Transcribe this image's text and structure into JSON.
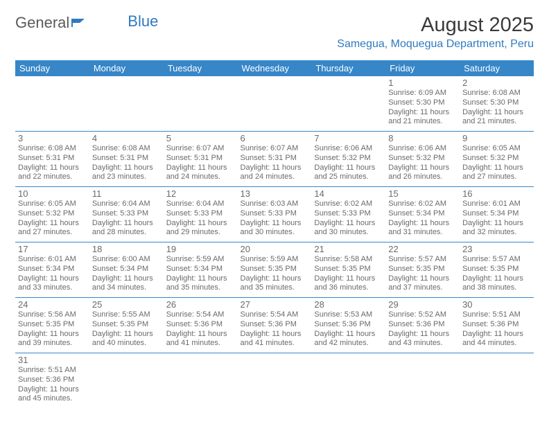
{
  "logo": {
    "word1": "General",
    "word2": "Blue"
  },
  "title": "August 2025",
  "location": "Samegua, Moquegua Department, Peru",
  "colors": {
    "header_bg": "#3686c8",
    "header_text": "#ffffff",
    "row_border": "#3686c8",
    "accent_text": "#2f7abf",
    "body_text": "#6a6a6a"
  },
  "weekday_labels": [
    "Sunday",
    "Monday",
    "Tuesday",
    "Wednesday",
    "Thursday",
    "Friday",
    "Saturday"
  ],
  "weeks": [
    [
      null,
      null,
      null,
      null,
      null,
      {
        "d": "1",
        "sunrise": "Sunrise: 6:09 AM",
        "sunset": "Sunset: 5:30 PM",
        "daylight": "Daylight: 11 hours and 21 minutes."
      },
      {
        "d": "2",
        "sunrise": "Sunrise: 6:08 AM",
        "sunset": "Sunset: 5:30 PM",
        "daylight": "Daylight: 11 hours and 21 minutes."
      }
    ],
    [
      {
        "d": "3",
        "sunrise": "Sunrise: 6:08 AM",
        "sunset": "Sunset: 5:31 PM",
        "daylight": "Daylight: 11 hours and 22 minutes."
      },
      {
        "d": "4",
        "sunrise": "Sunrise: 6:08 AM",
        "sunset": "Sunset: 5:31 PM",
        "daylight": "Daylight: 11 hours and 23 minutes."
      },
      {
        "d": "5",
        "sunrise": "Sunrise: 6:07 AM",
        "sunset": "Sunset: 5:31 PM",
        "daylight": "Daylight: 11 hours and 24 minutes."
      },
      {
        "d": "6",
        "sunrise": "Sunrise: 6:07 AM",
        "sunset": "Sunset: 5:31 PM",
        "daylight": "Daylight: 11 hours and 24 minutes."
      },
      {
        "d": "7",
        "sunrise": "Sunrise: 6:06 AM",
        "sunset": "Sunset: 5:32 PM",
        "daylight": "Daylight: 11 hours and 25 minutes."
      },
      {
        "d": "8",
        "sunrise": "Sunrise: 6:06 AM",
        "sunset": "Sunset: 5:32 PM",
        "daylight": "Daylight: 11 hours and 26 minutes."
      },
      {
        "d": "9",
        "sunrise": "Sunrise: 6:05 AM",
        "sunset": "Sunset: 5:32 PM",
        "daylight": "Daylight: 11 hours and 27 minutes."
      }
    ],
    [
      {
        "d": "10",
        "sunrise": "Sunrise: 6:05 AM",
        "sunset": "Sunset: 5:32 PM",
        "daylight": "Daylight: 11 hours and 27 minutes."
      },
      {
        "d": "11",
        "sunrise": "Sunrise: 6:04 AM",
        "sunset": "Sunset: 5:33 PM",
        "daylight": "Daylight: 11 hours and 28 minutes."
      },
      {
        "d": "12",
        "sunrise": "Sunrise: 6:04 AM",
        "sunset": "Sunset: 5:33 PM",
        "daylight": "Daylight: 11 hours and 29 minutes."
      },
      {
        "d": "13",
        "sunrise": "Sunrise: 6:03 AM",
        "sunset": "Sunset: 5:33 PM",
        "daylight": "Daylight: 11 hours and 30 minutes."
      },
      {
        "d": "14",
        "sunrise": "Sunrise: 6:02 AM",
        "sunset": "Sunset: 5:33 PM",
        "daylight": "Daylight: 11 hours and 30 minutes."
      },
      {
        "d": "15",
        "sunrise": "Sunrise: 6:02 AM",
        "sunset": "Sunset: 5:34 PM",
        "daylight": "Daylight: 11 hours and 31 minutes."
      },
      {
        "d": "16",
        "sunrise": "Sunrise: 6:01 AM",
        "sunset": "Sunset: 5:34 PM",
        "daylight": "Daylight: 11 hours and 32 minutes."
      }
    ],
    [
      {
        "d": "17",
        "sunrise": "Sunrise: 6:01 AM",
        "sunset": "Sunset: 5:34 PM",
        "daylight": "Daylight: 11 hours and 33 minutes."
      },
      {
        "d": "18",
        "sunrise": "Sunrise: 6:00 AM",
        "sunset": "Sunset: 5:34 PM",
        "daylight": "Daylight: 11 hours and 34 minutes."
      },
      {
        "d": "19",
        "sunrise": "Sunrise: 5:59 AM",
        "sunset": "Sunset: 5:34 PM",
        "daylight": "Daylight: 11 hours and 35 minutes."
      },
      {
        "d": "20",
        "sunrise": "Sunrise: 5:59 AM",
        "sunset": "Sunset: 5:35 PM",
        "daylight": "Daylight: 11 hours and 35 minutes."
      },
      {
        "d": "21",
        "sunrise": "Sunrise: 5:58 AM",
        "sunset": "Sunset: 5:35 PM",
        "daylight": "Daylight: 11 hours and 36 minutes."
      },
      {
        "d": "22",
        "sunrise": "Sunrise: 5:57 AM",
        "sunset": "Sunset: 5:35 PM",
        "daylight": "Daylight: 11 hours and 37 minutes."
      },
      {
        "d": "23",
        "sunrise": "Sunrise: 5:57 AM",
        "sunset": "Sunset: 5:35 PM",
        "daylight": "Daylight: 11 hours and 38 minutes."
      }
    ],
    [
      {
        "d": "24",
        "sunrise": "Sunrise: 5:56 AM",
        "sunset": "Sunset: 5:35 PM",
        "daylight": "Daylight: 11 hours and 39 minutes."
      },
      {
        "d": "25",
        "sunrise": "Sunrise: 5:55 AM",
        "sunset": "Sunset: 5:35 PM",
        "daylight": "Daylight: 11 hours and 40 minutes."
      },
      {
        "d": "26",
        "sunrise": "Sunrise: 5:54 AM",
        "sunset": "Sunset: 5:36 PM",
        "daylight": "Daylight: 11 hours and 41 minutes."
      },
      {
        "d": "27",
        "sunrise": "Sunrise: 5:54 AM",
        "sunset": "Sunset: 5:36 PM",
        "daylight": "Daylight: 11 hours and 41 minutes."
      },
      {
        "d": "28",
        "sunrise": "Sunrise: 5:53 AM",
        "sunset": "Sunset: 5:36 PM",
        "daylight": "Daylight: 11 hours and 42 minutes."
      },
      {
        "d": "29",
        "sunrise": "Sunrise: 5:52 AM",
        "sunset": "Sunset: 5:36 PM",
        "daylight": "Daylight: 11 hours and 43 minutes."
      },
      {
        "d": "30",
        "sunrise": "Sunrise: 5:51 AM",
        "sunset": "Sunset: 5:36 PM",
        "daylight": "Daylight: 11 hours and 44 minutes."
      }
    ],
    [
      {
        "d": "31",
        "sunrise": "Sunrise: 5:51 AM",
        "sunset": "Sunset: 5:36 PM",
        "daylight": "Daylight: 11 hours and 45 minutes."
      },
      null,
      null,
      null,
      null,
      null,
      null
    ]
  ]
}
